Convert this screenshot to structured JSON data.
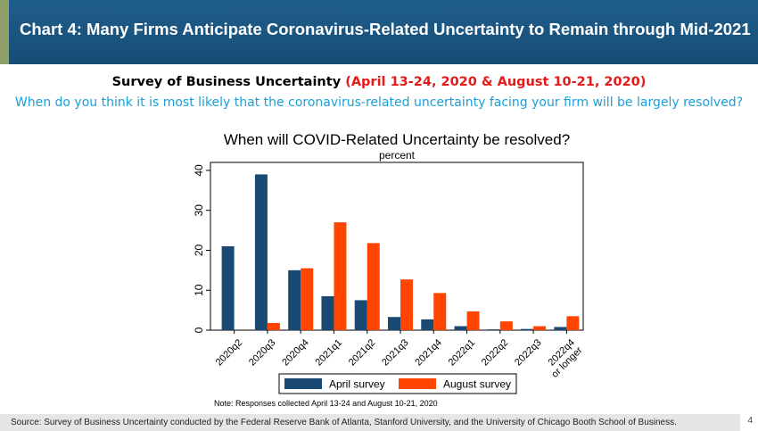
{
  "header": {
    "title": "Chart 4: Many Firms Anticipate Coronavirus-Related Uncertainty to Remain through Mid-2021"
  },
  "subtitle": {
    "main": "Survey of Business Uncertainty ",
    "dates": "(April 13-24, 2020 & August 10-21, 2020)"
  },
  "question": "When do you think it is most likely that the coronavirus-related uncertainty facing your firm will be largely resolved?",
  "footer": {
    "source": "Source: Survey of Business Uncertainty conducted by the Federal Reserve Bank of Atlanta, Stanford University, and the University of Chicago Booth School of Business.",
    "page_number": "4"
  },
  "chart_data": {
    "type": "bar",
    "title": "When will COVID-Related Uncertainty be resolved?",
    "subtitle": "percent",
    "categories": [
      "2020q2",
      "2020q3",
      "2020q4",
      "2021q1",
      "2021q2",
      "2021q3",
      "2021q4",
      "2022q1",
      "2022q2",
      "2022q3",
      "2022q4 or longer"
    ],
    "series": [
      {
        "name": "April survey",
        "color": "#1a4a73",
        "values": [
          21.0,
          39.0,
          15.0,
          8.5,
          7.5,
          3.3,
          2.7,
          1.0,
          0.2,
          0.3,
          0.8
        ]
      },
      {
        "name": "August survey",
        "color": "#ff4500",
        "values": [
          0,
          1.8,
          15.5,
          27.0,
          21.8,
          12.7,
          9.3,
          4.7,
          2.2,
          1.0,
          3.5
        ]
      }
    ],
    "ylim": [
      0,
      42
    ],
    "yticks": [
      0,
      10,
      20,
      30,
      40
    ],
    "legend_position": "bottom",
    "grid": false,
    "note": "Note: Responses collected April 13-24 and August 10-21, 2020"
  }
}
